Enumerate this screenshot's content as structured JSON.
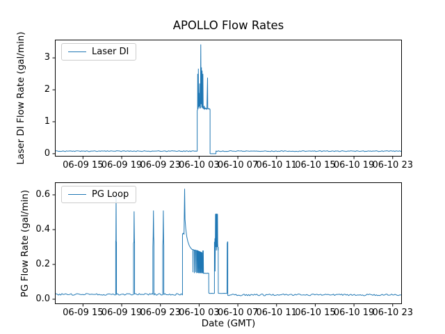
{
  "figure": {
    "title": "APOLLO Flow Rates",
    "xlabel": "Date (GMT)",
    "background": "#ffffff",
    "line_color": "#1f77b4",
    "spine_color": "#000000"
  },
  "chart_data": [
    {
      "type": "line",
      "title": "APOLLO Flow Rates",
      "ylabel": "Laser DI Flow Rate (gal/min)",
      "xlabel": "",
      "legend_position": "upper left",
      "grid": false,
      "ylim": [
        -0.09,
        3.57
      ],
      "yticks": [
        0,
        1,
        2,
        3
      ],
      "ytick_labels": [
        "0",
        "1",
        "2",
        "3"
      ],
      "xlim_hours": [
        12.1,
        47.95
      ],
      "xtick_hours": [
        15,
        19,
        23,
        27,
        31,
        35,
        39,
        43,
        47
      ],
      "xtick_labels": [
        "06-09 15",
        "06-09 19",
        "06-09 23",
        "06-10 03",
        "06-10 07",
        "06-10 11",
        "06-10 15",
        "06-10 19",
        "06-10 23"
      ],
      "series": [
        {
          "name": "Laser DI",
          "color": "#1f77b4",
          "baseline": 0.08,
          "peak": 3.42,
          "segments": [
            {
              "noisy": true,
              "h0": 12.1,
              "h1": 26.8,
              "v": 0.08,
              "amp": 0.013,
              "seed": 7
            },
            {
              "points": [
                [
                  26.8,
                  0.08
                ],
                [
                  26.8,
                  1.35
                ],
                [
                  26.84,
                  1.38
                ],
                [
                  26.85,
                  2.5
                ],
                [
                  26.87,
                  1.4
                ],
                [
                  26.9,
                  1.42
                ],
                [
                  26.92,
                  2.66
                ],
                [
                  26.94,
                  1.45
                ],
                [
                  26.99,
                  1.9
                ],
                [
                  27.01,
                  1.48
                ],
                [
                  27.05,
                  2.2
                ],
                [
                  27.07,
                  1.42
                ],
                [
                  27.1,
                  1.6
                ],
                [
                  27.13,
                  1.42
                ],
                [
                  27.17,
                  3.42
                ],
                [
                  27.2,
                  1.55
                ],
                [
                  27.24,
                  2.7
                ],
                [
                  27.27,
                  1.45
                ],
                [
                  27.31,
                  2.6
                ],
                [
                  27.34,
                  1.42
                ],
                [
                  27.39,
                  2.5
                ],
                [
                  27.42,
                  1.44
                ],
                [
                  27.47,
                  1.4
                ],
                [
                  27.52,
                  1.5
                ],
                [
                  27.56,
                  1.38
                ],
                [
                  27.62,
                  1.44
                ],
                [
                  27.68,
                  1.4
                ],
                [
                  27.74,
                  1.42
                ],
                [
                  27.8,
                  1.38
                ],
                [
                  27.87,
                  2.38
                ],
                [
                  27.89,
                  1.4
                ],
                [
                  27.95,
                  1.42
                ],
                [
                  28.02,
                  1.39
                ],
                [
                  28.08,
                  1.41
                ],
                [
                  28.13,
                  1.38
                ],
                [
                  28.13,
                  0.0
                ],
                [
                  28.74,
                  0.0
                ],
                [
                  28.74,
                  0.08
                ]
              ]
            },
            {
              "noisy": true,
              "h0": 28.74,
              "h1": 47.95,
              "v": 0.08,
              "amp": 0.013,
              "seed": 11
            }
          ]
        }
      ]
    },
    {
      "type": "line",
      "title": "",
      "ylabel": "PG Flow Rate (gal/min)",
      "xlabel": "Date (GMT)",
      "legend_position": "upper left",
      "grid": false,
      "ylim": [
        -0.028,
        0.672
      ],
      "yticks": [
        0.0,
        0.2,
        0.4,
        0.6
      ],
      "ytick_labels": [
        "0.0",
        "0.2",
        "0.4",
        "0.6"
      ],
      "xlim_hours": [
        12.1,
        47.95
      ],
      "xtick_hours": [
        15,
        19,
        23,
        27,
        31,
        35,
        39,
        43,
        47
      ],
      "xtick_labels": [
        "06-09 15",
        "06-09 19",
        "06-09 23",
        "06-10 03",
        "06-10 07",
        "06-10 11",
        "06-10 15",
        "06-10 19",
        "06-10 23"
      ],
      "series": [
        {
          "name": "PG Loop",
          "color": "#1f77b4",
          "baseline": 0.025,
          "peak": 0.635,
          "segments": [
            {
              "noisy": true,
              "h0": 12.1,
              "h1": 18.38,
              "v": 0.028,
              "amp": 0.005,
              "seed": 3
            },
            {
              "points": [
                [
                  18.38,
                  0.028
                ],
                [
                  18.38,
                  0.33
                ],
                [
                  18.4,
                  0.34
                ],
                [
                  18.42,
                  0.6
                ],
                [
                  18.44,
                  0.33
                ],
                [
                  18.46,
                  0.33
                ],
                [
                  18.46,
                  0.028
                ]
              ]
            },
            {
              "noisy": true,
              "h0": 18.46,
              "h1": 20.22,
              "v": 0.028,
              "amp": 0.005,
              "seed": 5
            },
            {
              "points": [
                [
                  20.22,
                  0.028
                ],
                [
                  20.22,
                  0.32
                ],
                [
                  20.26,
                  0.33
                ],
                [
                  20.28,
                  0.505
                ],
                [
                  20.31,
                  0.35
                ],
                [
                  20.33,
                  0.32
                ],
                [
                  20.33,
                  0.028
                ]
              ]
            },
            {
              "noisy": true,
              "h0": 20.33,
              "h1": 22.22,
              "v": 0.028,
              "amp": 0.005,
              "seed": 6
            },
            {
              "points": [
                [
                  22.22,
                  0.028
                ],
                [
                  22.22,
                  0.3
                ],
                [
                  22.25,
                  0.36
                ],
                [
                  22.28,
                  0.51
                ],
                [
                  22.31,
                  0.36
                ],
                [
                  22.33,
                  0.33
                ],
                [
                  22.33,
                  0.028
                ]
              ]
            },
            {
              "noisy": true,
              "h0": 22.33,
              "h1": 23.24,
              "v": 0.028,
              "amp": 0.005,
              "seed": 8
            },
            {
              "points": [
                [
                  23.24,
                  0.028
                ],
                [
                  23.24,
                  0.31
                ],
                [
                  23.27,
                  0.345
                ],
                [
                  23.3,
                  0.51
                ],
                [
                  23.33,
                  0.34
                ],
                [
                  23.35,
                  0.31
                ],
                [
                  23.35,
                  0.028
                ]
              ]
            },
            {
              "noisy": true,
              "h0": 23.35,
              "h1": 25.28,
              "v": 0.028,
              "amp": 0.005,
              "seed": 9
            },
            {
              "points": [
                [
                  25.28,
                  0.028
                ],
                [
                  25.28,
                  0.375
                ],
                [
                  25.36,
                  0.38
                ],
                [
                  25.44,
                  0.372
                ],
                [
                  25.5,
                  0.635
                ],
                [
                  25.54,
                  0.46
                ],
                [
                  25.62,
                  0.405
                ],
                [
                  25.72,
                  0.36
                ],
                [
                  25.84,
                  0.33
                ],
                [
                  25.98,
                  0.308
                ],
                [
                  26.12,
                  0.295
                ],
                [
                  26.25,
                  0.287
                ],
                [
                  26.35,
                  0.285
                ],
                [
                  26.36,
                  0.155
                ],
                [
                  26.38,
                  0.285
                ],
                [
                  26.5,
                  0.282
                ],
                [
                  26.51,
                  0.15
                ],
                [
                  26.53,
                  0.282
                ],
                [
                  26.62,
                  0.283
                ],
                [
                  26.63,
                  0.155
                ],
                [
                  26.65,
                  0.28
                ],
                [
                  26.73,
                  0.28
                ],
                [
                  26.74,
                  0.15
                ],
                [
                  26.76,
                  0.28
                ],
                [
                  26.82,
                  0.28
                ],
                [
                  26.83,
                  0.152
                ],
                [
                  26.85,
                  0.278
                ],
                [
                  26.9,
                  0.278
                ],
                [
                  26.91,
                  0.15
                ],
                [
                  26.93,
                  0.276
                ],
                [
                  26.98,
                  0.276
                ],
                [
                  26.99,
                  0.15
                ],
                [
                  27.01,
                  0.274
                ],
                [
                  27.06,
                  0.274
                ],
                [
                  27.07,
                  0.15
                ],
                [
                  27.09,
                  0.272
                ],
                [
                  27.14,
                  0.272
                ],
                [
                  27.15,
                  0.15
                ],
                [
                  27.17,
                  0.27
                ],
                [
                  27.22,
                  0.27
                ],
                [
                  27.23,
                  0.15
                ],
                [
                  27.26,
                  0.268
                ],
                [
                  27.3,
                  0.268
                ],
                [
                  27.31,
                  0.15
                ],
                [
                  27.36,
                  0.152
                ],
                [
                  27.38,
                  0.28
                ],
                [
                  27.4,
                  0.15
                ],
                [
                  27.43,
                  0.28
                ],
                [
                  27.45,
                  0.148
                ],
                [
                  27.58,
                  0.15
                ],
                [
                  27.72,
                  0.148
                ],
                [
                  27.86,
                  0.15
                ],
                [
                  27.99,
                  0.149
                ],
                [
                  28.0,
                  0.035
                ],
                [
                  28.12,
                  0.033
                ],
                [
                  28.3,
                  0.034
                ],
                [
                  28.48,
                  0.033
                ],
                [
                  28.58,
                  0.034
                ],
                [
                  28.58,
                  0.33
                ],
                [
                  28.61,
                  0.16
                ],
                [
                  28.63,
                  0.35
                ],
                [
                  28.65,
                  0.16
                ],
                [
                  28.67,
                  0.3
                ],
                [
                  28.69,
                  0.49
                ],
                [
                  28.71,
                  0.3
                ],
                [
                  28.73,
                  0.49
                ],
                [
                  28.76,
                  0.49
                ],
                [
                  28.78,
                  0.28
                ],
                [
                  28.8,
                  0.3
                ],
                [
                  28.82,
                  0.49
                ],
                [
                  28.85,
                  0.49
                ],
                [
                  28.87,
                  0.3
                ],
                [
                  28.9,
                  0.49
                ],
                [
                  28.92,
                  0.32
                ],
                [
                  28.95,
                  0.28
                ],
                [
                  28.97,
                  0.3
                ],
                [
                  28.98,
                  0.034
                ],
                [
                  29.3,
                  0.033
                ],
                [
                  29.6,
                  0.034
                ],
                [
                  29.88,
                  0.033
                ],
                [
                  29.9,
                  0.32
                ],
                [
                  29.93,
                  0.33
                ],
                [
                  29.96,
                  0.33
                ],
                [
                  29.96,
                  0.033
                ]
              ]
            },
            {
              "noisy": true,
              "h0": 29.96,
              "h1": 47.95,
              "v": 0.025,
              "amp": 0.005,
              "seed": 13
            }
          ]
        }
      ]
    }
  ]
}
